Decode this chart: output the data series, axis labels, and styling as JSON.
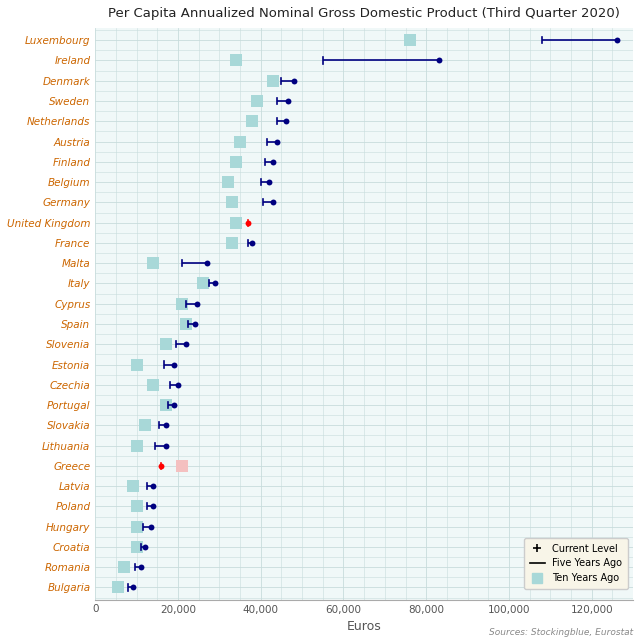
{
  "title": "Per Capita Annualized Nominal Gross Domestic Product (Third Quarter 2020)",
  "xlabel": "Euros",
  "source": "Sources: Stockingblue, Eurostat",
  "countries": [
    "Luxembourg",
    "Ireland",
    "Denmark",
    "Sweden",
    "Netherlands",
    "Austria",
    "Finland",
    "Belgium",
    "Germany",
    "United Kingdom",
    "France",
    "Malta",
    "Italy",
    "Cyprus",
    "Spain",
    "Slovenia",
    "Estonia",
    "Czechia",
    "Portugal",
    "Slovakia",
    "Lithuania",
    "Greece",
    "Latvia",
    "Poland",
    "Hungary",
    "Croatia",
    "Romania",
    "Bulgaria"
  ],
  "current": [
    126000,
    83000,
    48000,
    46500,
    46000,
    44000,
    43000,
    42000,
    43000,
    37000,
    38000,
    27000,
    29000,
    24500,
    24000,
    22000,
    19000,
    20000,
    19000,
    17000,
    17000,
    16000,
    14000,
    14000,
    13500,
    12000,
    11000,
    9000
  ],
  "five_years_ago": [
    108000,
    55000,
    45000,
    44000,
    44000,
    41500,
    41000,
    40000,
    40500,
    37000,
    37000,
    21000,
    27500,
    22000,
    22500,
    19500,
    16500,
    18000,
    17500,
    15500,
    14500,
    16000,
    12500,
    12500,
    11500,
    11000,
    9500,
    8000
  ],
  "ten_years_ago": [
    76000,
    34000,
    43000,
    39000,
    38000,
    35000,
    34000,
    32000,
    33000,
    34000,
    33000,
    14000,
    26000,
    21000,
    22000,
    17000,
    10000,
    14000,
    17000,
    12000,
    10000,
    21000,
    9000,
    10000,
    10000,
    10000,
    7000,
    5500
  ],
  "line_colors": [
    "navy",
    "navy",
    "navy",
    "navy",
    "navy",
    "navy",
    "navy",
    "navy",
    "navy",
    "red",
    "navy",
    "navy",
    "navy",
    "navy",
    "navy",
    "navy",
    "navy",
    "navy",
    "navy",
    "navy",
    "navy",
    "red",
    "navy",
    "navy",
    "navy",
    "navy",
    "navy",
    "navy"
  ],
  "ten_sq_colors": [
    "#a8d8d8",
    "#a8d8d8",
    "#a8d8d8",
    "#a8d8d8",
    "#a8d8d8",
    "#a8d8d8",
    "#a8d8d8",
    "#a8d8d8",
    "#a8d8d8",
    "#a8d8d8",
    "#a8d8d8",
    "#a8d8d8",
    "#a8d8d8",
    "#a8d8d8",
    "#a8d8d8",
    "#a8d8d8",
    "#a8d8d8",
    "#a8d8d8",
    "#a8d8d8",
    "#a8d8d8",
    "#a8d8d8",
    "#f4c0c0",
    "#a8d8d8",
    "#a8d8d8",
    "#a8d8d8",
    "#a8d8d8",
    "#a8d8d8",
    "#a8d8d8"
  ],
  "xlim": [
    0,
    130000
  ],
  "xticks": [
    0,
    20000,
    40000,
    60000,
    80000,
    100000,
    120000
  ],
  "xticklabels": [
    "0",
    "20,000",
    "40,000",
    "60,000",
    "80,000",
    "100,000",
    "120,000"
  ],
  "bg_color": "#ffffff",
  "plot_bg_color": "#f0f8f8",
  "grid_color": "#c8dcdc",
  "title_color": "#222222",
  "label_color": "#cc6600",
  "tick_label_color": "#555555"
}
